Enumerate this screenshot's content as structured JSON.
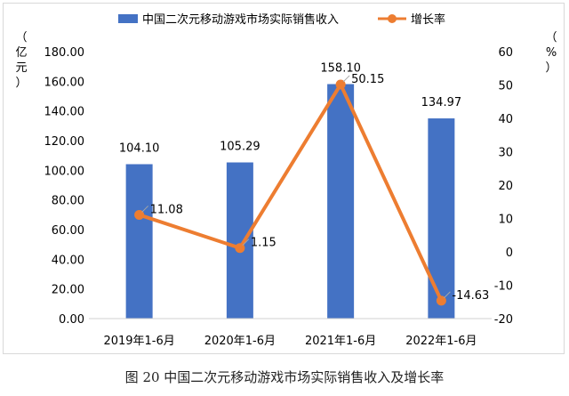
{
  "caption": "图 20 中国二次元移动游戏市场实际销售收入及增长率",
  "chart_data": {
    "type": "bar",
    "categories": [
      "2019年1-6月",
      "2020年1-6月",
      "2021年1-6月",
      "2022年1-6月"
    ],
    "series": [
      {
        "name": "中国二次元移动游戏市场实际销售收入",
        "type": "bar",
        "axis": "left",
        "values": [
          104.1,
          105.29,
          158.1,
          134.97
        ],
        "labels": [
          "104.10",
          "105.29",
          "158.10",
          "134.97"
        ],
        "color": "#4472c4"
      },
      {
        "name": "增长率",
        "type": "line",
        "axis": "right",
        "values": [
          11.08,
          1.15,
          50.15,
          -14.63
        ],
        "labels": [
          "11.08",
          "1.15",
          "50.15",
          "-14.63"
        ],
        "color": "#ed7d31"
      }
    ],
    "y_left": {
      "label_chars": [
        "（",
        "亿",
        "元",
        "）"
      ],
      "ylim": [
        0,
        180
      ],
      "ticks": [
        0,
        20,
        40,
        60,
        80,
        100,
        120,
        140,
        160,
        180
      ],
      "tick_labels": [
        "0.00",
        "20.00",
        "40.00",
        "60.00",
        "80.00",
        "100.00",
        "120.00",
        "140.00",
        "160.00",
        "180.00"
      ]
    },
    "y_right": {
      "label_chars": [
        "（",
        "%",
        "）"
      ],
      "ylim": [
        -20,
        60
      ],
      "ticks": [
        -20,
        -10,
        0,
        10,
        20,
        30,
        40,
        50,
        60
      ],
      "tick_labels": [
        "-20",
        "-10",
        "0",
        "10",
        "20",
        "30",
        "40",
        "50",
        "60"
      ]
    },
    "grid": false,
    "legend_position": "top",
    "text_color": "#000000"
  }
}
